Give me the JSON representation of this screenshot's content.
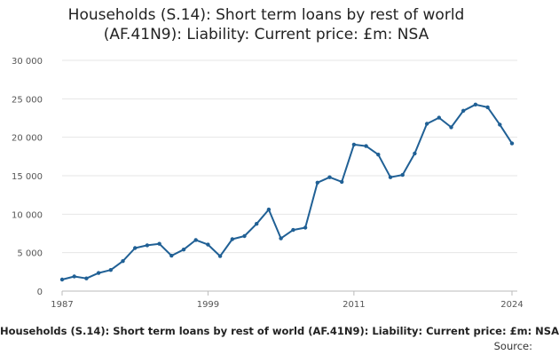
{
  "chart_data": {
    "type": "line",
    "title_line1": "Households (S.14): Short term loans by rest of world",
    "title_line2": "(AF.41N9): Liability: Current price: £m: NSA",
    "xlabel": "",
    "ylabel": "",
    "x": [
      1987,
      1988,
      1989,
      1990,
      1991,
      1992,
      1993,
      1994,
      1995,
      1996,
      1997,
      1998,
      1999,
      2000,
      2001,
      2002,
      2003,
      2004,
      2005,
      2006,
      2007,
      2008,
      2009,
      2010,
      2011,
      2012,
      2013,
      2014,
      2015,
      2016,
      2017,
      2018,
      2019,
      2020,
      2021,
      2022,
      2023,
      2024
    ],
    "series": [
      {
        "values": [
          1500,
          1900,
          1650,
          2350,
          2750,
          3900,
          5600,
          5950,
          6150,
          4600,
          5400,
          6650,
          6050,
          4550,
          6750,
          7150,
          8750,
          10600,
          6850,
          7950,
          8250,
          14100,
          14800,
          14200,
          19050,
          18850,
          17750,
          14800,
          15100,
          17900,
          21750,
          22550,
          21300,
          23450,
          24250,
          23900,
          21650,
          19200
        ]
      }
    ],
    "xlim": [
      1987,
      2024
    ],
    "ylim": [
      0,
      30000
    ],
    "y_ticks": [
      0,
      5000,
      10000,
      15000,
      20000,
      25000,
      30000
    ],
    "y_tick_labels": [
      "0",
      "5 000",
      "10 000",
      "15 000",
      "20 000",
      "25 000",
      "30 000"
    ],
    "x_ticks": [
      1987,
      1999,
      2011,
      2024
    ],
    "x_tick_labels": [
      "1987",
      "1999",
      "2011",
      "2024"
    ],
    "grid": true,
    "line_color": "#206095",
    "grid_color": "#e6e6e6",
    "axis_color": "#bbbbbb"
  },
  "footer": {
    "caption": "Households (S.14): Short term loans by rest of world (AF.41N9): Liability: Current price: £m: NSA",
    "source": "Source: "
  }
}
